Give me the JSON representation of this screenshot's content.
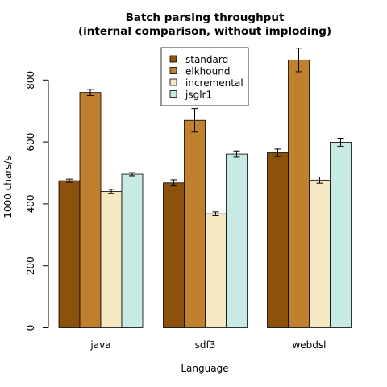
{
  "chart_data": {
    "type": "bar",
    "title": [
      "Batch parsing throughput",
      "(internal comparison, without imploding)"
    ],
    "xlabel": "Language",
    "ylabel": "1000 chars/s",
    "categories": [
      "java",
      "sdf3",
      "webdsl"
    ],
    "yticks": [
      0,
      200,
      400,
      600,
      800
    ],
    "ylim": [
      0,
      900
    ],
    "legend_position": "top-center",
    "series": [
      {
        "name": "standard",
        "color": "#8C510A",
        "values": [
          475,
          468,
          565
        ],
        "errors": [
          5,
          10,
          12
        ]
      },
      {
        "name": "elkhound",
        "color": "#BF812D",
        "values": [
          760,
          670,
          865
        ],
        "errors": [
          10,
          38,
          38
        ]
      },
      {
        "name": "incremental",
        "color": "#F6E8C3",
        "values": [
          440,
          368,
          477
        ],
        "errors": [
          7,
          6,
          10
        ]
      },
      {
        "name": "jsglr1",
        "color": "#C7EAE5",
        "values": [
          496,
          561,
          599
        ],
        "errors": [
          5,
          10,
          13
        ]
      }
    ]
  }
}
